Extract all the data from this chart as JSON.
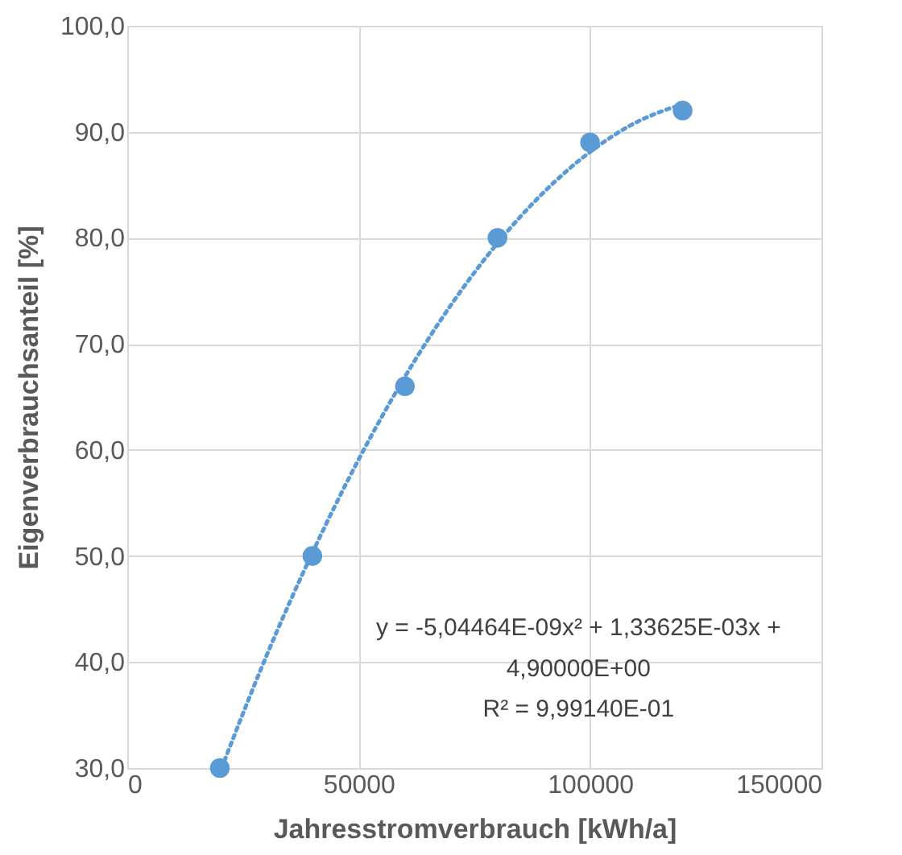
{
  "chart_data": {
    "type": "scatter",
    "xlabel": "Jahresstromverbrauch [kWh/a]",
    "ylabel": "Eigenverbrauchsanteil [%]",
    "xlim": [
      0,
      150000
    ],
    "xticks": [
      0,
      50000,
      100000,
      150000
    ],
    "ylim": [
      30,
      100
    ],
    "yticks": [
      {
        "value": 30,
        "label": "30,0"
      },
      {
        "value": 40,
        "label": "40,0"
      },
      {
        "value": 50,
        "label": "50,0"
      },
      {
        "value": 60,
        "label": "60,0"
      },
      {
        "value": 70,
        "label": "70,0"
      },
      {
        "value": 80,
        "label": "80,0"
      },
      {
        "value": 90,
        "label": "90,0"
      },
      {
        "value": 100,
        "label": "100,0"
      }
    ],
    "grid": true,
    "x": [
      20000,
      40000,
      60000,
      80000,
      100000,
      120000
    ],
    "series": [
      {
        "marker": "circle",
        "color": "#5b9bd5",
        "values": [
          30,
          50,
          66,
          80,
          89,
          92
        ]
      },
      {
        "type": "line",
        "marker": "none",
        "line_style": "dotted",
        "color": "#5b9bd5",
        "x": [
          21000,
          30000,
          40000,
          50000,
          60000,
          70000,
          80000,
          90000,
          100000,
          110000,
          120000
        ],
        "values": [
          30.7,
          40.5,
          50.3,
          59.1,
          66.9,
          73.7,
          79.5,
          84.3,
          88.1,
          90.9,
          92.6
        ]
      }
    ],
    "annotations": [
      "y = -5,04464E-09x² + 1,33625E-03x +",
      "4,90000E+00",
      "R² = 9,99140E-01"
    ]
  }
}
